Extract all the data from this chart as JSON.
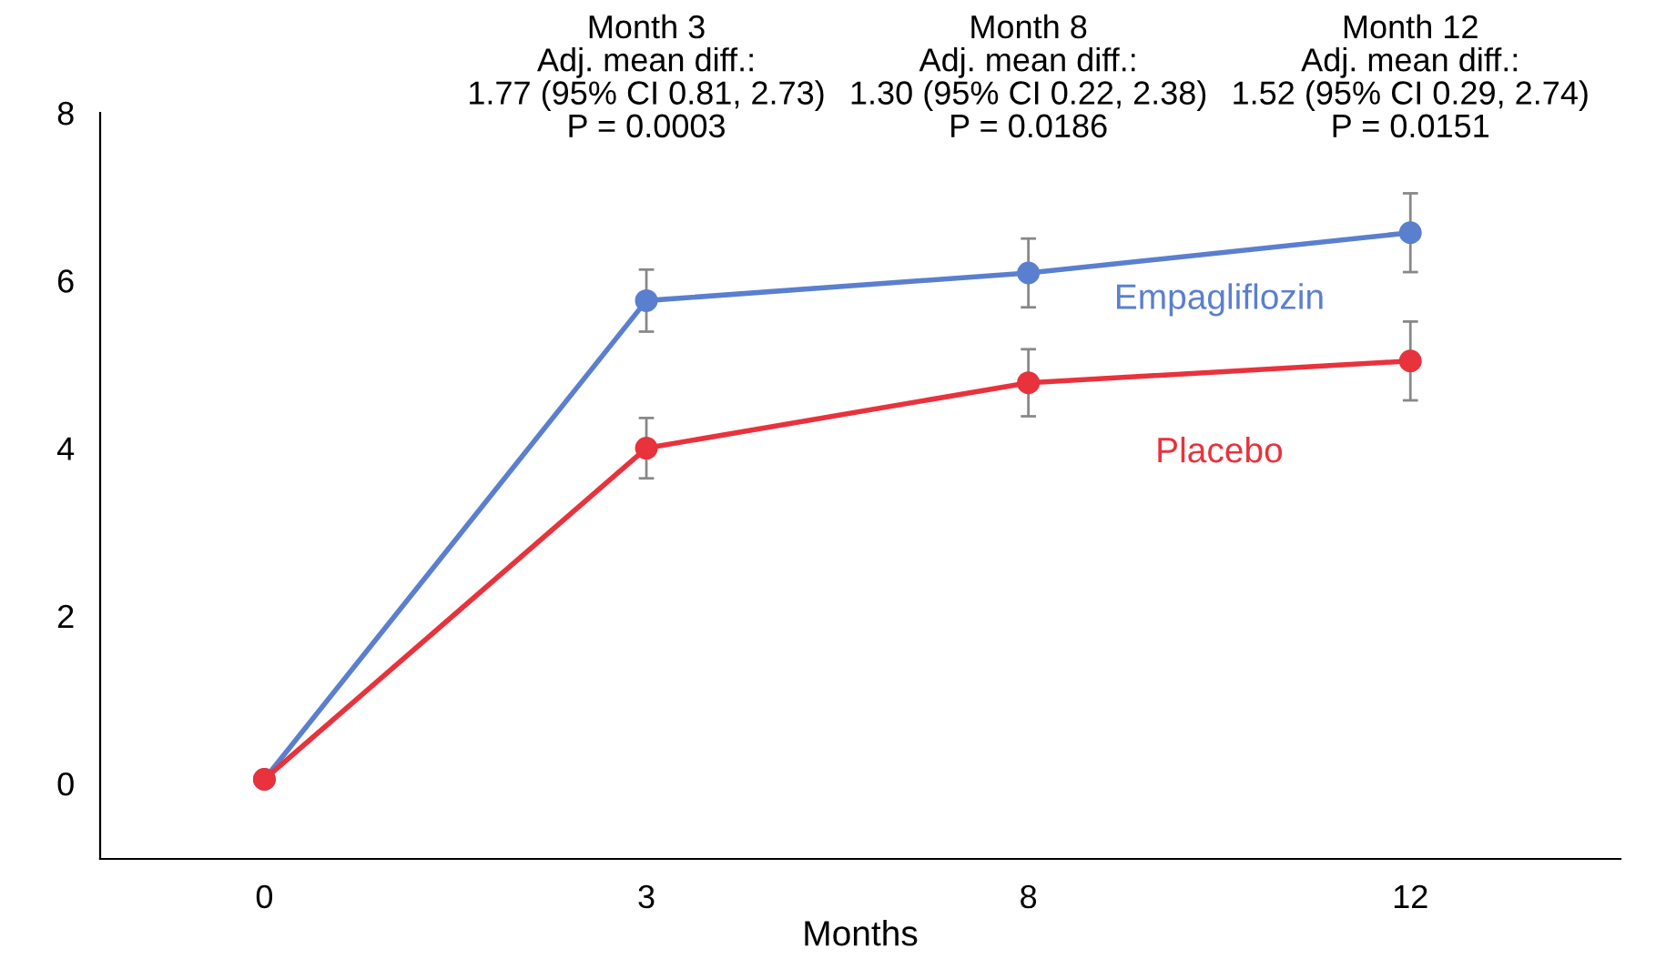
{
  "chart_data": {
    "type": "line",
    "xlabel": "Months",
    "categories": [
      "0",
      "3",
      "8",
      "12"
    ],
    "series": [
      {
        "name": "Empagliflozin",
        "color": "#5b7fcf",
        "values": [
          0.05,
          5.76,
          6.09,
          6.57
        ],
        "errors": [
          null,
          0.37,
          0.41,
          0.47
        ]
      },
      {
        "name": "Placebo",
        "color": "#e8323c",
        "values": [
          0.05,
          4.0,
          4.78,
          5.04
        ],
        "errors": [
          null,
          0.36,
          0.4,
          0.47
        ]
      }
    ],
    "ylim": [
      -0.9,
      8
    ],
    "yticks": [
      0,
      2,
      4,
      6,
      8
    ],
    "grid": false,
    "legend": false,
    "marker": "circle",
    "line_style": "solid",
    "annotations": [
      "Month 3\nAdj. mean diff.:\n1.77 (95% CI 0.81, 2.73)\nP = 0.0003",
      "Month 8\nAdj. mean diff.:\n1.30 (95% CI 0.22, 2.38)\nP = 0.0186",
      "Month 12\nAdj. mean diff.:\n1.52 (95% CI 0.29, 2.74)\nP = 0.0151"
    ]
  }
}
